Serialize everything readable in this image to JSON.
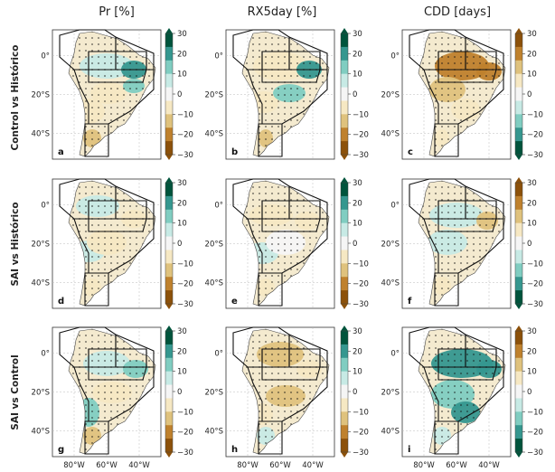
{
  "chart_data": {
    "type": "map-grid",
    "columns": [
      "Pr [%]",
      "RX5day [%]",
      "CDD [days]"
    ],
    "rows": [
      "Control vs Histórico",
      "SAI vs Histórico",
      "SAI vs Control"
    ],
    "panel_labels": [
      [
        "a",
        "b",
        "c"
      ],
      [
        "d",
        "e",
        "f"
      ],
      [
        "g",
        "h",
        "i"
      ]
    ],
    "y_tick_labels": [
      "0°",
      "20°S",
      "40°S"
    ],
    "x_tick_labels": [
      "80°W",
      "60°W",
      "40°W"
    ],
    "colorbar_ticks": [
      "30",
      "20",
      "10",
      "0",
      "−10",
      "−20",
      "−30"
    ],
    "colorbar_range": [
      -30,
      30
    ],
    "colormaps": {
      "wet_positive": [
        "#00543c",
        "#35978f",
        "#80cdc1",
        "#c7eae5",
        "#f5f5f5",
        "#f6e8c3",
        "#dfc27d",
        "#bf812d",
        "#8c510a"
      ],
      "dry_positive": [
        "#8c510a",
        "#bf812d",
        "#dfc27d",
        "#f6e8c3",
        "#f5f5f5",
        "#c7eae5",
        "#80cdc1",
        "#35978f",
        "#00543c"
      ]
    },
    "column_colormap": [
      "wet_positive",
      "wet_positive",
      "dry_positive"
    ],
    "hatching": "stippled dots mark significant changes",
    "regions_outlined": true
  }
}
